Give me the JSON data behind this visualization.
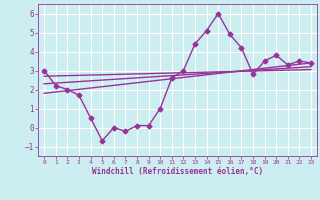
{
  "xlabel": "Windchill (Refroidissement éolien,°C)",
  "background_color": "#cceef0",
  "grid_color": "#ffffff",
  "line_color": "#993399",
  "xlim": [
    -0.5,
    23.5
  ],
  "ylim": [
    -1.5,
    6.5
  ],
  "xticks": [
    0,
    1,
    2,
    3,
    4,
    5,
    6,
    7,
    8,
    9,
    10,
    11,
    12,
    13,
    14,
    15,
    16,
    17,
    18,
    19,
    20,
    21,
    22,
    23
  ],
  "yticks": [
    -1,
    0,
    1,
    2,
    3,
    4,
    5,
    6
  ],
  "series1_x": [
    0,
    1,
    2,
    3,
    4,
    5,
    6,
    7,
    8,
    9,
    10,
    11,
    12,
    13,
    14,
    15,
    16,
    17,
    18,
    19,
    20,
    21,
    22,
    23
  ],
  "series1_y": [
    3.0,
    2.2,
    2.0,
    1.7,
    0.5,
    -0.7,
    0.0,
    -0.2,
    0.1,
    0.1,
    1.0,
    2.6,
    3.0,
    4.4,
    5.1,
    6.0,
    4.9,
    4.2,
    2.8,
    3.5,
    3.8,
    3.3,
    3.5,
    3.4
  ],
  "series2_x": [
    0,
    23
  ],
  "series2_y": [
    1.8,
    3.4
  ],
  "series3_x": [
    0,
    23
  ],
  "series3_y": [
    2.3,
    3.2
  ],
  "series4_x": [
    0,
    23
  ],
  "series4_y": [
    2.7,
    3.05
  ],
  "marker": "D",
  "marker_size": 2.5,
  "line_width": 1.0
}
